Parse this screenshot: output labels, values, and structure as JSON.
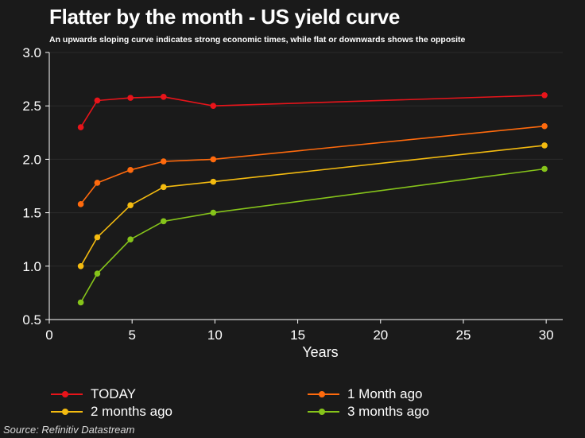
{
  "header": {
    "title": "Flatter by the month - US yield curve",
    "subtitle": "An upwards sloping curve indicates strong economic times, while flat or downwards shows the opposite"
  },
  "footer": {
    "source": "Source: Refinitiv Datastream"
  },
  "colors": {
    "background": "#1a1a1a",
    "axis": "#ffffff",
    "grid": "#2a2a2a"
  },
  "chart_data": {
    "type": "line",
    "title": "Flatter by the month - US yield curve",
    "xlabel": "Years",
    "ylabel": "",
    "xlim": [
      0,
      31
    ],
    "ylim": [
      0.5,
      3.0
    ],
    "xticks": [
      0,
      5,
      10,
      15,
      20,
      25,
      30
    ],
    "yticks": [
      0.5,
      1.0,
      1.5,
      2.0,
      2.5,
      3.0
    ],
    "ytick_labels": [
      "0.5",
      "1.0",
      "1.5",
      "2.0",
      "2.5",
      "3.0"
    ],
    "grid": true,
    "legend_position": "bottom",
    "x": [
      1.9,
      2.9,
      4.9,
      6.9,
      9.9,
      29.9
    ],
    "series": [
      {
        "name": "TODAY",
        "color": "#e8141a",
        "values": [
          2.3,
          2.55,
          2.575,
          2.585,
          2.5,
          2.6
        ]
      },
      {
        "name": "1 Month ago",
        "color": "#ff6a0d",
        "values": [
          1.58,
          1.78,
          1.9,
          1.98,
          2.0,
          2.31
        ]
      },
      {
        "name": "2 months ago",
        "color": "#f4bb10",
        "values": [
          1.0,
          1.27,
          1.57,
          1.74,
          1.79,
          2.13
        ]
      },
      {
        "name": "3 months ago",
        "color": "#86c41a",
        "values": [
          0.66,
          0.93,
          1.25,
          1.42,
          1.5,
          1.91
        ]
      }
    ]
  }
}
